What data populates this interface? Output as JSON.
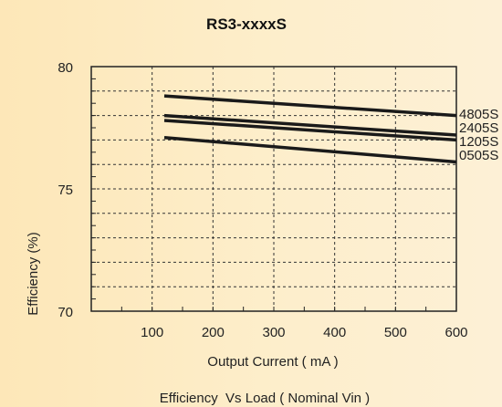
{
  "chart_data": {
    "type": "line",
    "title": "RS3-xxxxS",
    "xlabel": "Output Current ( mA )",
    "ylabel": "Efficiency (%)",
    "caption": "Efficiency  Vs Load ( Nominal Vin )",
    "xlim": [
      0,
      600
    ],
    "ylim": [
      70,
      80
    ],
    "xticks": [
      "100",
      "200",
      "300",
      "400",
      "500",
      "600"
    ],
    "yticks": [
      "80",
      "75",
      "70"
    ],
    "grid": true,
    "legend_placement": "right",
    "series": [
      {
        "name": "4805S",
        "x": [
          120,
          600
        ],
        "y": [
          78.8,
          78.0
        ]
      },
      {
        "name": "2405S",
        "x": [
          120,
          600
        ],
        "y": [
          78.0,
          77.2
        ]
      },
      {
        "name": "1205S",
        "x": [
          120,
          600
        ],
        "y": [
          77.8,
          77.0
        ]
      },
      {
        "name": "0505S",
        "x": [
          120,
          600
        ],
        "y": [
          77.1,
          76.1
        ]
      }
    ]
  }
}
